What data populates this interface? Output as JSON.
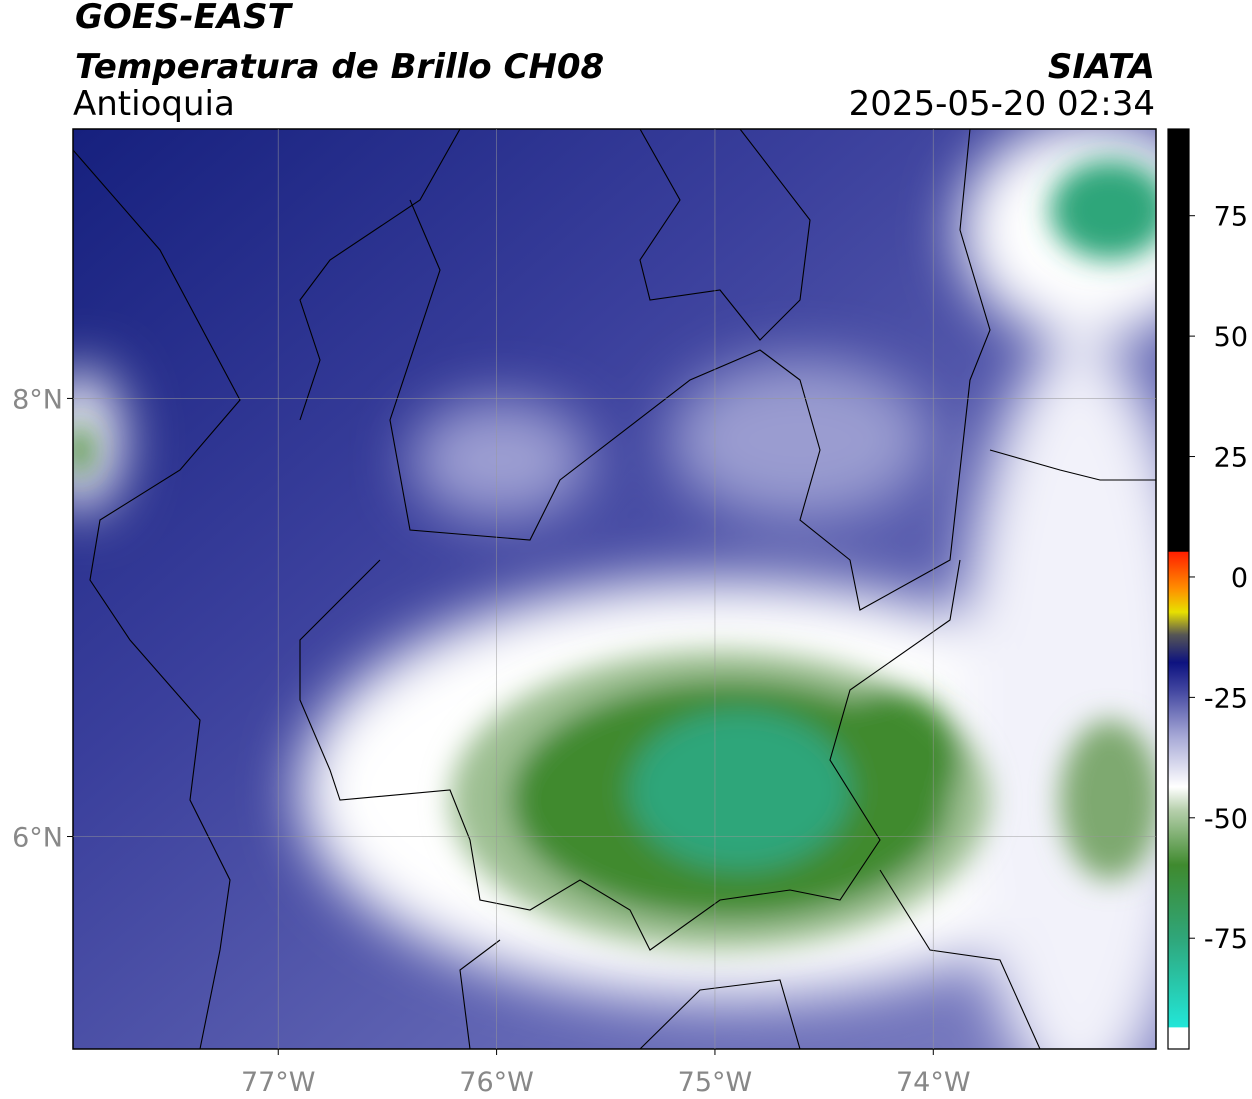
{
  "header": {
    "title": "GOES-EAST",
    "subtitle": "Temperatura de Brillo CH08",
    "region": "Antioquia",
    "source": "SIATA",
    "datetime": "2025-05-20 02:34"
  },
  "map": {
    "xlim": [
      -77.94,
      -72.98
    ],
    "ylim": [
      5.03,
      9.23
    ],
    "xticks": [
      {
        "value": -77,
        "label": "77°W"
      },
      {
        "value": -76,
        "label": "76°W"
      },
      {
        "value": -75,
        "label": "75°W"
      },
      {
        "value": -74,
        "label": "74°W"
      }
    ],
    "yticks": [
      {
        "value": 6,
        "label": "6°N"
      },
      {
        "value": 8,
        "label": "8°N"
      }
    ],
    "grid": true
  },
  "colorbar": {
    "ylim": [
      -98,
      93
    ],
    "yticks": [
      -75,
      -50,
      -25,
      0,
      25,
      50,
      75
    ]
  }
}
